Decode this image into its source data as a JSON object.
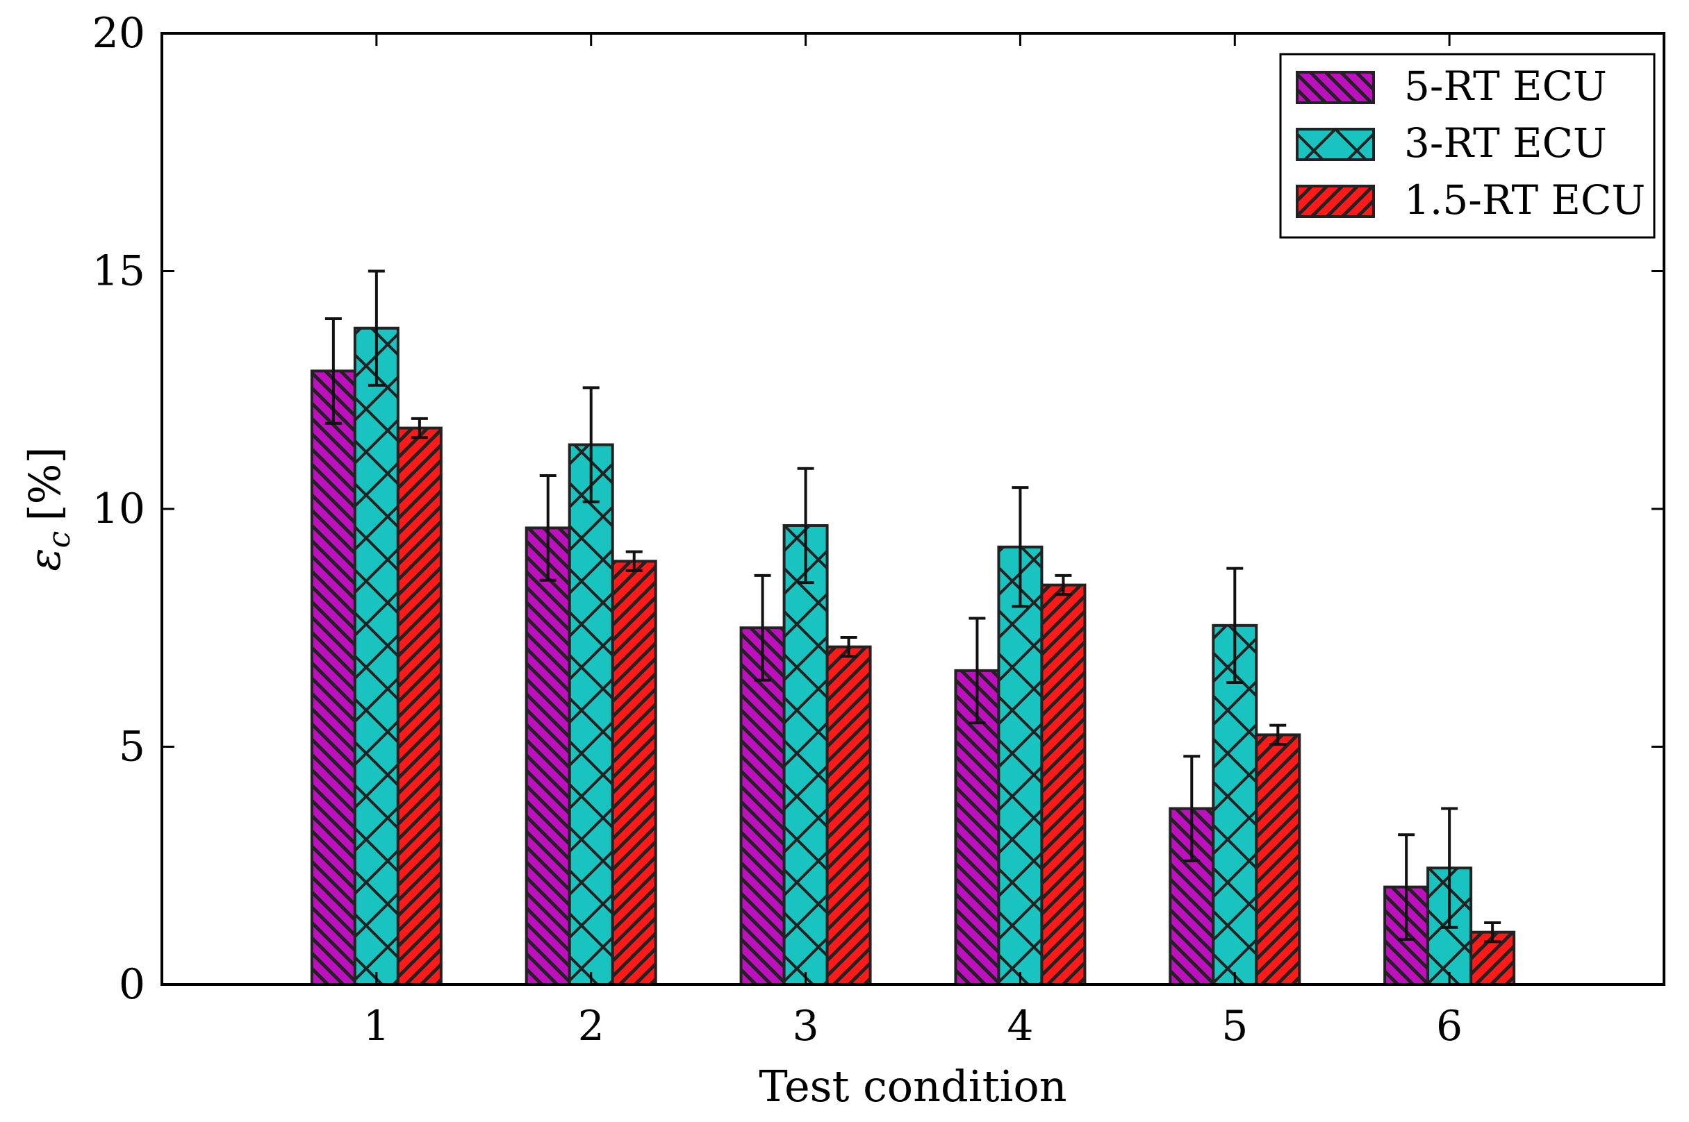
{
  "chart_data": {
    "type": "bar",
    "title": "",
    "xlabel": "Test condition",
    "ylabel_symbol": "ε",
    "ylabel_subscript": "c",
    "ylabel_unit": "[%]",
    "ylim": [
      0,
      20
    ],
    "xlim": [
      0,
      7
    ],
    "yticks": [
      0,
      5,
      10,
      15,
      20
    ],
    "categories": [
      "1",
      "2",
      "3",
      "4",
      "5",
      "6"
    ],
    "legend_position": "top-right",
    "series": [
      {
        "name": "5-RT ECU",
        "color": "#bf10bf",
        "hatch": "backslash",
        "values": [
          12.9,
          9.6,
          7.5,
          6.6,
          3.7,
          2.05
        ],
        "errors": [
          1.1,
          1.1,
          1.1,
          1.1,
          1.1,
          1.1
        ]
      },
      {
        "name": "3-RT ECU",
        "color": "#19c3bf",
        "hatch": "cross",
        "values": [
          13.8,
          11.35,
          9.65,
          9.2,
          7.55,
          2.45
        ],
        "errors": [
          1.2,
          1.2,
          1.2,
          1.25,
          1.2,
          1.25
        ]
      },
      {
        "name": "1.5-RT ECU",
        "color": "#ff1a1a",
        "hatch": "slash",
        "values": [
          11.7,
          8.9,
          7.1,
          8.4,
          5.25,
          1.1
        ],
        "errors": [
          0.2,
          0.2,
          0.2,
          0.2,
          0.2,
          0.2
        ]
      }
    ]
  }
}
